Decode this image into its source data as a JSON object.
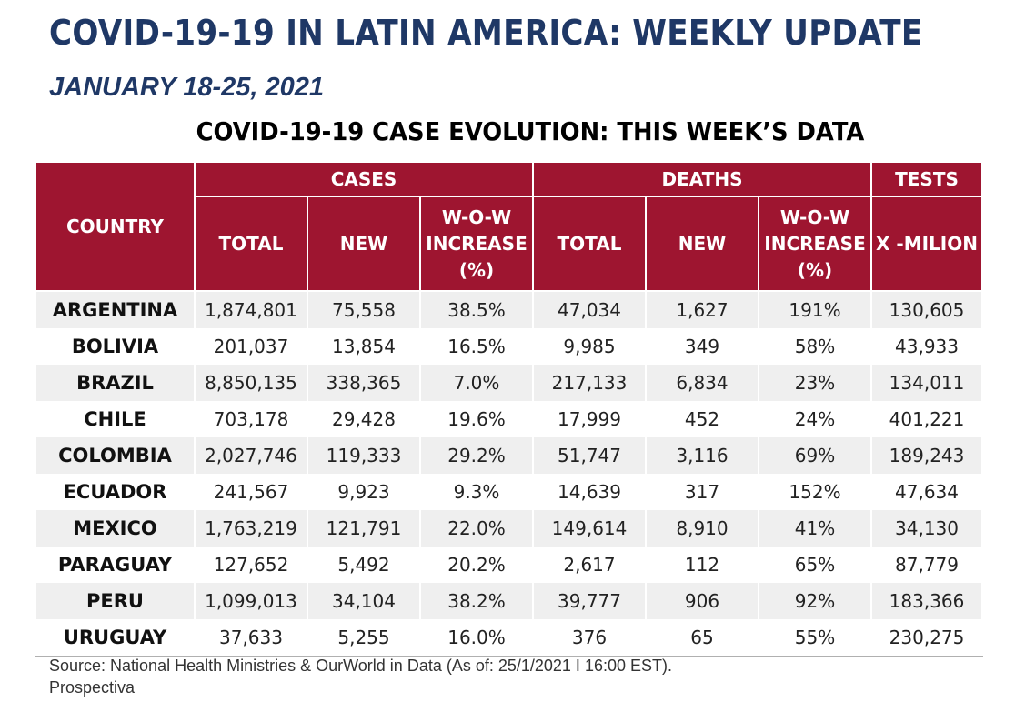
{
  "title": "COVID-19-19 IN LATIN AMERICA: WEEKLY UPDATE",
  "subtitle": "JANUARY 18-25, 2021",
  "table_title": "COVID-19-19 CASE EVOLUTION: THIS WEEK’S DATA",
  "header": {
    "country": "COUNTRY",
    "groups": {
      "cases": "CASES",
      "deaths": "DEATHS",
      "tests": "TESTS"
    },
    "cases_total": "TOTAL",
    "cases_new": "NEW",
    "cases_wow": "W-O-W INCREASE (%)",
    "deaths_total": "TOTAL",
    "deaths_new": "NEW",
    "deaths_wow": "W-O-W INCREASE (%)",
    "tests": "X -MILION"
  },
  "rows": [
    [
      "ARGENTINA",
      "1,874,801",
      "75,558",
      "38.5%",
      "47,034",
      "1,627",
      "191%",
      "130,605"
    ],
    [
      "BOLIVIA",
      "201,037",
      "13,854",
      "16.5%",
      "9,985",
      "349",
      "58%",
      "43,933"
    ],
    [
      "BRAZIL",
      "8,850,135",
      "338,365",
      "7.0%",
      "217,133",
      "6,834",
      "23%",
      "134,011"
    ],
    [
      "CHILE",
      "703,178",
      "29,428",
      "19.6%",
      "17,999",
      "452",
      "24%",
      "401,221"
    ],
    [
      "COLOMBIA",
      "2,027,746",
      "119,333",
      "29.2%",
      "51,747",
      "3,116",
      "69%",
      "189,243"
    ],
    [
      "ECUADOR",
      "241,567",
      "9,923",
      "9.3%",
      "14,639",
      "317",
      "152%",
      "47,634"
    ],
    [
      "MEXICO",
      "1,763,219",
      "121,791",
      "22.0%",
      "149,614",
      "8,910",
      "41%",
      "34,130"
    ],
    [
      "PARAGUAY",
      "127,652",
      "5,492",
      "20.2%",
      "2,617",
      "112",
      "65%",
      "87,779"
    ],
    [
      "PERU",
      "1,099,013",
      "34,104",
      "38.2%",
      "39,777",
      "906",
      "92%",
      "183,366"
    ],
    [
      "URUGUAY",
      "37,633",
      "5,255",
      "16.0%",
      "376",
      "65",
      "55%",
      "230,275"
    ]
  ],
  "source": {
    "line1": "Source: National Health Ministries & OurWorld in Data (As of: 25/1/2021 I 16:00 EST).",
    "line2": "Prospectiva"
  },
  "colors": {
    "header_bg": "#9e1530",
    "title": "#1f3866",
    "row_shade": "#efefef"
  }
}
